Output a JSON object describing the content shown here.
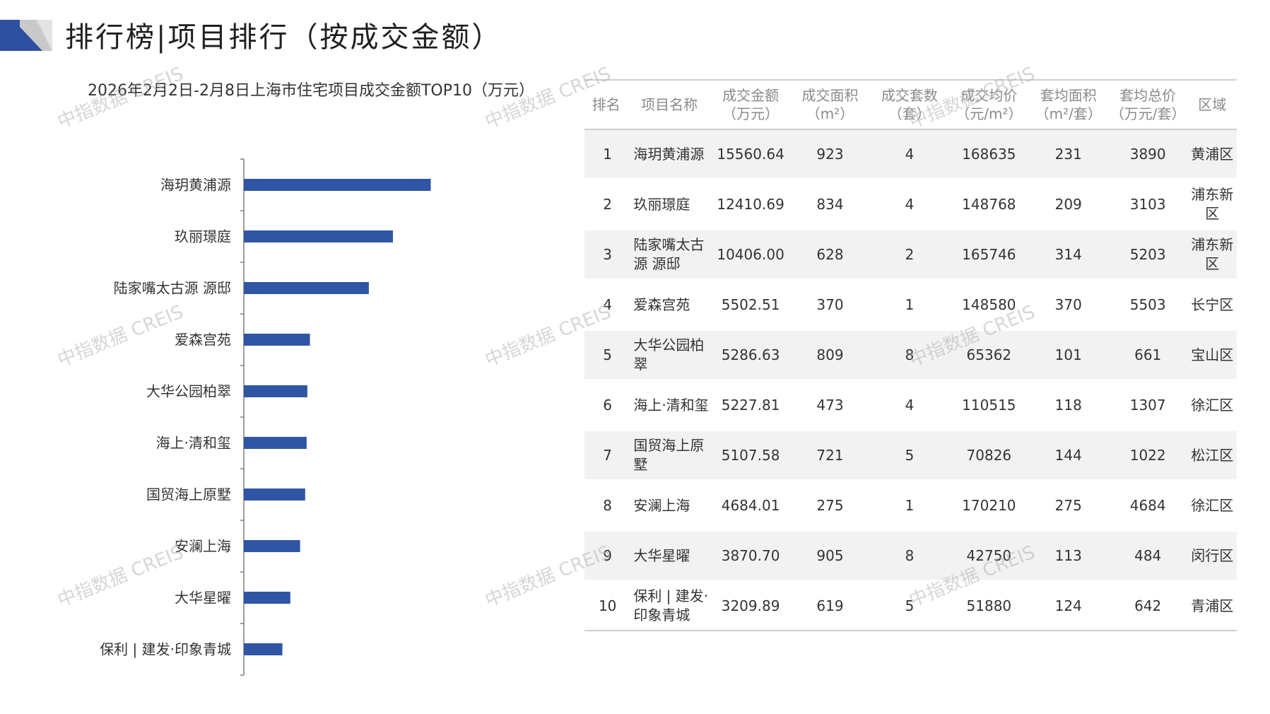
{
  "header": {
    "title": "排行榜|项目排行（按成交金额）"
  },
  "watermark_text": "中指数据 CREIS",
  "colors": {
    "bar": "#2F55A4",
    "axis": "#7f7f7f",
    "header_text": "#8a8a8a",
    "stripe": "#f2f2f2"
  },
  "chart_data": {
    "type": "bar",
    "orientation": "horizontal",
    "title": "2026年2月2日-2月8日上海市住宅项目成交金额TOP10（万元）",
    "categories": [
      "海玥黄浦源",
      "玖丽璟庭",
      "陆家嘴太古源 源邸",
      "爱森宫苑",
      "大华公园柏翠",
      "海上·清和玺",
      "国贸海上原墅",
      "安澜上海",
      "大华星曜",
      "保利 | 建发·印象青城"
    ],
    "values": [
      15560.64,
      12410.69,
      10406.0,
      5502.51,
      5286.63,
      5227.81,
      5107.58,
      4684.01,
      3870.7,
      3209.89
    ],
    "xlim": [
      0,
      20000
    ],
    "grid": false,
    "legend": false
  },
  "table": {
    "headers": [
      [
        "排名"
      ],
      [
        "项目名称"
      ],
      [
        "成交金额",
        "（万元）"
      ],
      [
        "成交面积",
        "（m²）"
      ],
      [
        "成交套数",
        "（套）"
      ],
      [
        "成交均价",
        "（元/m²）"
      ],
      [
        "套均面积",
        "（m²/套）"
      ],
      [
        "套均总价",
        "（万元/套）"
      ],
      [
        "区域"
      ]
    ],
    "rows": [
      [
        "1",
        "海玥黄浦源",
        "15560.64",
        "923",
        "4",
        "168635",
        "231",
        "3890",
        "黄浦区"
      ],
      [
        "2",
        "玖丽璟庭",
        "12410.69",
        "834",
        "4",
        "148768",
        "209",
        "3103",
        "浦东新区"
      ],
      [
        "3",
        "陆家嘴太古源 源邸",
        "10406.00",
        "628",
        "2",
        "165746",
        "314",
        "5203",
        "浦东新区"
      ],
      [
        "4",
        "爱森宫苑",
        "5502.51",
        "370",
        "1",
        "148580",
        "370",
        "5503",
        "长宁区"
      ],
      [
        "5",
        "大华公园柏翠",
        "5286.63",
        "809",
        "8",
        "65362",
        "101",
        "661",
        "宝山区"
      ],
      [
        "6",
        "海上·清和玺",
        "5227.81",
        "473",
        "4",
        "110515",
        "118",
        "1307",
        "徐汇区"
      ],
      [
        "7",
        "国贸海上原墅",
        "5107.58",
        "721",
        "5",
        "70826",
        "144",
        "1022",
        "松江区"
      ],
      [
        "8",
        "安澜上海",
        "4684.01",
        "275",
        "1",
        "170210",
        "275",
        "4684",
        "徐汇区"
      ],
      [
        "9",
        "大华星曜",
        "3870.70",
        "905",
        "8",
        "42750",
        "113",
        "484",
        "闵行区"
      ],
      [
        "10",
        "保利 | 建发·印象青城",
        "3209.89",
        "619",
        "5",
        "51880",
        "124",
        "642",
        "青浦区"
      ]
    ]
  }
}
